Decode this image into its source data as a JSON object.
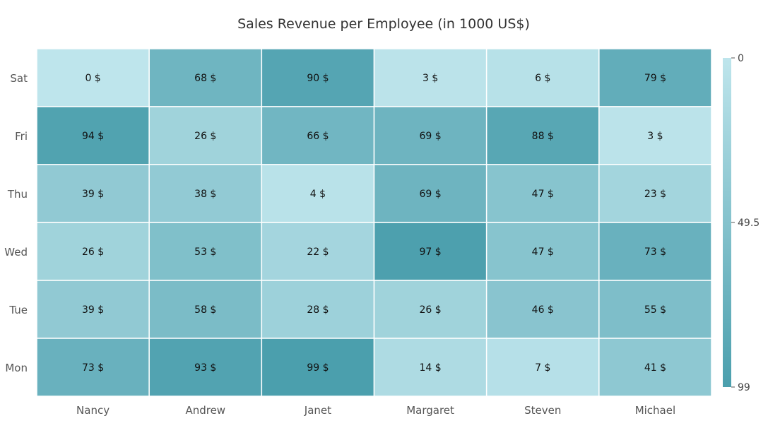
{
  "chart_data": {
    "type": "heatmap",
    "title": "Sales Revenue per Employee (in 1000 US$)",
    "x_categories": [
      "Nancy",
      "Andrew",
      "Janet",
      "Margaret",
      "Steven",
      "Michael"
    ],
    "y_categories": [
      "Sat",
      "Fri",
      "Thu",
      "Wed",
      "Tue",
      "Mon"
    ],
    "values": [
      [
        0,
        68,
        90,
        3,
        6,
        79
      ],
      [
        94,
        26,
        66,
        69,
        88,
        3
      ],
      [
        39,
        38,
        4,
        69,
        47,
        23
      ],
      [
        26,
        53,
        22,
        97,
        47,
        73
      ],
      [
        39,
        58,
        28,
        26,
        46,
        55
      ],
      [
        73,
        93,
        99,
        14,
        7,
        41
      ]
    ],
    "value_suffix": " $",
    "legend": {
      "position": "right",
      "min": 0,
      "mid": 49.5,
      "max": 99,
      "labels": [
        "0",
        "49.5",
        "99"
      ]
    },
    "colors": {
      "low": "#bee5ec",
      "high": "#4b9fad",
      "border": "#ffffff"
    }
  }
}
